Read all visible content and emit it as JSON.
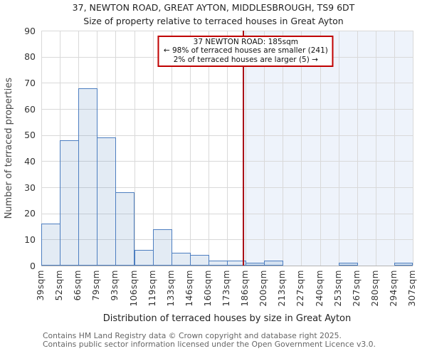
{
  "title": {
    "line1": "37, NEWTON ROAD, GREAT AYTON, MIDDLESBROUGH, TS9 6DT",
    "line2": "Size of property relative to terraced houses in Great Ayton"
  },
  "y_axis": {
    "label": "Number of terraced properties",
    "ticks": [
      0,
      10,
      20,
      30,
      40,
      50,
      60,
      70,
      80,
      90
    ]
  },
  "x_axis": {
    "label": "Distribution of terraced houses by size in Great Ayton",
    "tick_labels": [
      "39sqm",
      "52sqm",
      "66sqm",
      "79sqm",
      "93sqm",
      "106sqm",
      "119sqm",
      "133sqm",
      "146sqm",
      "160sqm",
      "173sqm",
      "186sqm",
      "200sqm",
      "213sqm",
      "227sqm",
      "240sqm",
      "253sqm",
      "267sqm",
      "280sqm",
      "294sqm",
      "307sqm"
    ]
  },
  "annotation": {
    "line1": "37 NEWTON ROAD: 185sqm",
    "line2": "← 98% of terraced houses are smaller (241)",
    "line3": "2% of terraced houses are larger (5) →"
  },
  "footer": {
    "line1": "Contains HM Land Registry data © Crown copyright and database right 2025.",
    "line2": "Contains public sector information licensed under the Open Government Licence v3.0."
  },
  "chart_data": {
    "type": "bar",
    "title": "Size of property relative to terraced houses in Great Ayton",
    "categories": [
      "39-52sqm",
      "52-66sqm",
      "66-79sqm",
      "79-93sqm",
      "93-106sqm",
      "106-119sqm",
      "119-133sqm",
      "133-146sqm",
      "146-160sqm",
      "160-173sqm",
      "173-186sqm",
      "186-200sqm",
      "200-213sqm",
      "213-227sqm",
      "227-240sqm",
      "240-253sqm",
      "253-267sqm",
      "267-280sqm",
      "280-294sqm",
      "294-307sqm"
    ],
    "values": [
      16,
      48,
      68,
      49,
      28,
      6,
      14,
      5,
      4,
      2,
      2,
      1,
      2,
      0,
      0,
      0,
      1,
      0,
      0,
      1
    ],
    "xlabel": "Distribution of terraced houses by size in Great Ayton",
    "ylabel": "Number of terraced properties",
    "ylim": [
      0,
      90
    ],
    "x_range_sqm": [
      39,
      307
    ],
    "marker_value_sqm": 185,
    "grid": true,
    "colors": {
      "bar_fill": "#dce6f3",
      "bar_edge": "#4d7ec0",
      "marker_line": "#aa1016",
      "annotation_border": "#c00000",
      "shade_region": "#eef3fb",
      "gridline": "#d9d9d9"
    }
  }
}
